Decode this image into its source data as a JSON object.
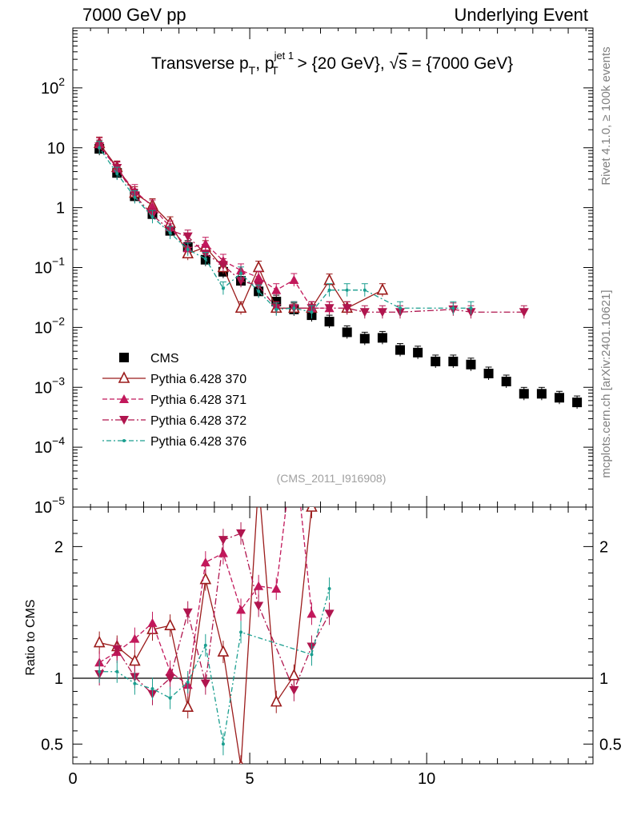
{
  "header": {
    "left": "7000 GeV pp",
    "right": "Underlying Event"
  },
  "side_labels": {
    "version": "Rivet 4.1.0, ≥ 100k events",
    "source": "mcplots.cern.ch [arXiv:2401.10621]"
  },
  "chart_data": {
    "type": "scatter",
    "title_parts": {
      "prefix": "Transverse p",
      "sub_t": "T",
      "comma": ", p",
      "sup_jet": "jet 1",
      "cut": " > {20 GeV}, ",
      "sqrt": "√",
      "s": "s",
      "energy": " = {7000 GeV}"
    },
    "watermark": "(CMS_2011_I916908)",
    "main": {
      "yscale": "log",
      "ylim": [
        1e-05,
        1000
      ],
      "yticks": [
        {
          "value": 1e-05,
          "base": "10",
          "exp": "−5"
        },
        {
          "value": 0.0001,
          "base": "10",
          "exp": "−4"
        },
        {
          "value": 0.001,
          "base": "10",
          "exp": "−3"
        },
        {
          "value": 0.01,
          "base": "10",
          "exp": "−2"
        },
        {
          "value": 0.1,
          "base": "10",
          "exp": "−1"
        },
        {
          "value": 1,
          "base": "1",
          "exp": ""
        },
        {
          "value": 10,
          "base": "10",
          "exp": ""
        },
        {
          "value": 100,
          "base": "10",
          "exp": "2"
        }
      ]
    },
    "ratio": {
      "ylabel": "Ratio to CMS",
      "ylim": [
        0.35,
        2.3
      ],
      "yticks": [
        {
          "value": 0.5,
          "label": "0.5"
        },
        {
          "value": 1,
          "label": "1"
        },
        {
          "value": 2,
          "label": "2"
        }
      ]
    },
    "xlim": [
      0,
      14.7
    ],
    "xticks": [
      {
        "value": 0,
        "label": "0"
      },
      {
        "value": 5,
        "label": "5"
      },
      {
        "value": 10,
        "label": "10"
      }
    ],
    "legend": {
      "position": "lower-left"
    },
    "series": [
      {
        "name": "CMS",
        "marker": "square",
        "color": "#000000",
        "dash": "",
        "x": [
          0.75,
          1.25,
          1.75,
          2.25,
          2.75,
          3.25,
          3.75,
          4.25,
          4.75,
          5.25,
          5.75,
          6.25,
          6.75,
          7.25,
          7.75,
          8.25,
          8.75,
          9.25,
          9.75,
          10.25,
          10.75,
          11.25,
          11.75,
          12.25,
          12.75,
          13.25,
          13.75,
          14.25
        ],
        "y": [
          9.6,
          3.8,
          1.55,
          0.78,
          0.41,
          0.22,
          0.135,
          0.085,
          0.06,
          0.04,
          0.027,
          0.02,
          0.016,
          0.0125,
          0.0083,
          0.0065,
          0.0067,
          0.0042,
          0.0038,
          0.0027,
          0.0027,
          0.0024,
          0.0017,
          0.00125,
          0.00078,
          0.00078,
          0.00067,
          0.00056
        ],
        "ratio": []
      },
      {
        "name": "Pythia 6.428 370",
        "marker": "triangle-up-open",
        "color": "#9b1b1b",
        "dash": "",
        "x": [
          0.75,
          1.25,
          1.75,
          2.25,
          2.75,
          3.25,
          3.75,
          4.25,
          4.75,
          5.25,
          5.75,
          6.25,
          6.75,
          7.25,
          7.75,
          8.75
        ],
        "y": [
          11.8,
          4.7,
          1.75,
          1.1,
          0.55,
          0.17,
          0.22,
          0.1,
          0.021,
          0.1,
          0.021,
          0.021,
          0.021,
          0.061,
          0.021,
          0.042
        ],
        "ratio": [
          1.27,
          1.24,
          1.13,
          1.37,
          1.4,
          0.78,
          1.75,
          1.2,
          0.33,
          2.5,
          0.82,
          1.02,
          2.3,
          null,
          null,
          null
        ]
      },
      {
        "name": "Pythia 6.428 371",
        "marker": "triangle-up",
        "color": "#c2185b",
        "dash": "6,3",
        "x": [
          0.75,
          1.25,
          1.75,
          2.25,
          2.75,
          3.25,
          3.75,
          4.25,
          4.75,
          5.25,
          5.75,
          6.25,
          6.75,
          7.25
        ],
        "y": [
          11.5,
          4.5,
          1.9,
          1.05,
          0.47,
          0.21,
          0.25,
          0.13,
          0.09,
          0.068,
          0.042,
          0.062,
          0.021,
          0.021
        ],
        "ratio": [
          1.12,
          1.2,
          1.3,
          1.42,
          1.05,
          0.95,
          1.88,
          1.95,
          1.52,
          1.7,
          1.68,
          2.8,
          1.49,
          null
        ]
      },
      {
        "name": "Pythia 6.428 372",
        "marker": "triangle-down",
        "color": "#b0154e",
        "dash": "8,3,2,3",
        "x": [
          0.75,
          1.25,
          1.75,
          2.25,
          2.75,
          3.25,
          3.75,
          4.25,
          4.75,
          5.25,
          5.75,
          6.25,
          6.75,
          7.25,
          7.75,
          8.25,
          8.75,
          9.25,
          10.75,
          11.25,
          12.75
        ],
        "y": [
          10.5,
          4.6,
          1.6,
          0.75,
          0.42,
          0.33,
          0.17,
          0.11,
          0.06,
          0.05,
          0.021,
          0.021,
          0.021,
          0.021,
          0.021,
          0.018,
          0.018,
          0.018,
          0.02,
          0.018,
          0.018
        ],
        "ratio": [
          1.03,
          1.22,
          1.01,
          0.88,
          1.0,
          1.5,
          0.96,
          2.05,
          2.1,
          1.55,
          null,
          0.91,
          1.24,
          1.49,
          null,
          null,
          null,
          null,
          null,
          null,
          null
        ]
      },
      {
        "name": "Pythia 6.428 376",
        "marker": "circle-small",
        "color": "#1a9e8f",
        "dash": "2,3,6,3",
        "x": [
          0.75,
          1.25,
          1.75,
          2.25,
          2.75,
          3.25,
          3.75,
          4.25,
          4.75,
          5.25,
          5.75,
          6.25,
          6.75,
          7.25,
          7.75,
          8.25,
          9.25,
          10.75,
          11.25
        ],
        "y": [
          10.0,
          3.7,
          1.5,
          0.7,
          0.38,
          0.2,
          0.14,
          0.045,
          0.08,
          0.04,
          0.02,
          0.021,
          0.018,
          0.042,
          0.042,
          0.042,
          0.021,
          0.021,
          0.021
        ],
        "ratio": [
          1.05,
          1.05,
          0.96,
          0.92,
          0.85,
          0.97,
          1.25,
          0.5,
          1.35,
          null,
          null,
          null,
          1.18,
          1.68,
          null,
          null,
          null,
          null,
          null
        ]
      }
    ]
  }
}
